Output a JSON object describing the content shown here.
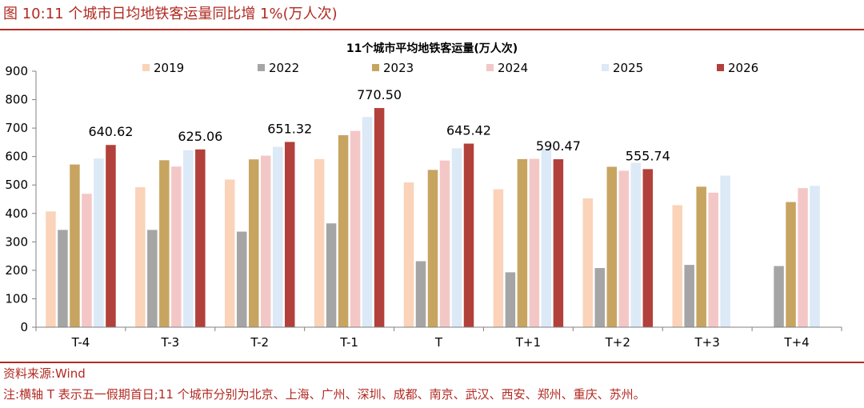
{
  "header": {
    "title": "图 10:11 个城市日均地铁客运量同比增 1%(万人次)"
  },
  "footer": {
    "source": "资料来源:Wind",
    "note": "注:横轴 T 表示五一假期首日;11 个城市分别为北京、上海、广州、深圳、成都、南京、武汉、西安、郑州、重庆、苏州。"
  },
  "colors": {
    "accent": "#b22a22"
  },
  "chart_data": {
    "type": "bar",
    "title": "11个城市平均地铁客运量(万人次)",
    "categories": [
      "T-4",
      "T-3",
      "T-2",
      "T-1",
      "T",
      "T+1",
      "T+2",
      "T+3",
      "T+4"
    ],
    "ylim": [
      0,
      900
    ],
    "yticks": [
      0,
      100,
      200,
      300,
      400,
      500,
      600,
      700,
      800,
      900
    ],
    "grid": false,
    "legend": "top",
    "series": [
      {
        "name": "2019",
        "color": "#fad3b9",
        "values": [
          407,
          492,
          519,
          591,
          509,
          485,
          453,
          429,
          null
        ]
      },
      {
        "name": "2022",
        "color": "#a5a5a5",
        "values": [
          342,
          342,
          336,
          365,
          232,
          193,
          208,
          219,
          215
        ]
      },
      {
        "name": "2023",
        "color": "#c7a460",
        "values": [
          572,
          587,
          590,
          675,
          553,
          591,
          564,
          494,
          440
        ]
      },
      {
        "name": "2024",
        "color": "#f4c7c7",
        "values": [
          469,
          565,
          603,
          690,
          586,
          592,
          550,
          473,
          489
        ]
      },
      {
        "name": "2025",
        "color": "#dce9f6",
        "values": [
          593,
          622,
          634,
          739,
          629,
          628,
          578,
          533,
          497
        ]
      },
      {
        "name": "2026",
        "color": "#b1413a",
        "values": [
          640.62,
          625.06,
          651.32,
          770.5,
          645.42,
          590.47,
          555.74,
          null,
          null
        ]
      }
    ],
    "data_labels": [
      "640.62",
      "625.06",
      "651.32",
      "770.50",
      "645.42",
      "590.47",
      "555.74"
    ]
  }
}
